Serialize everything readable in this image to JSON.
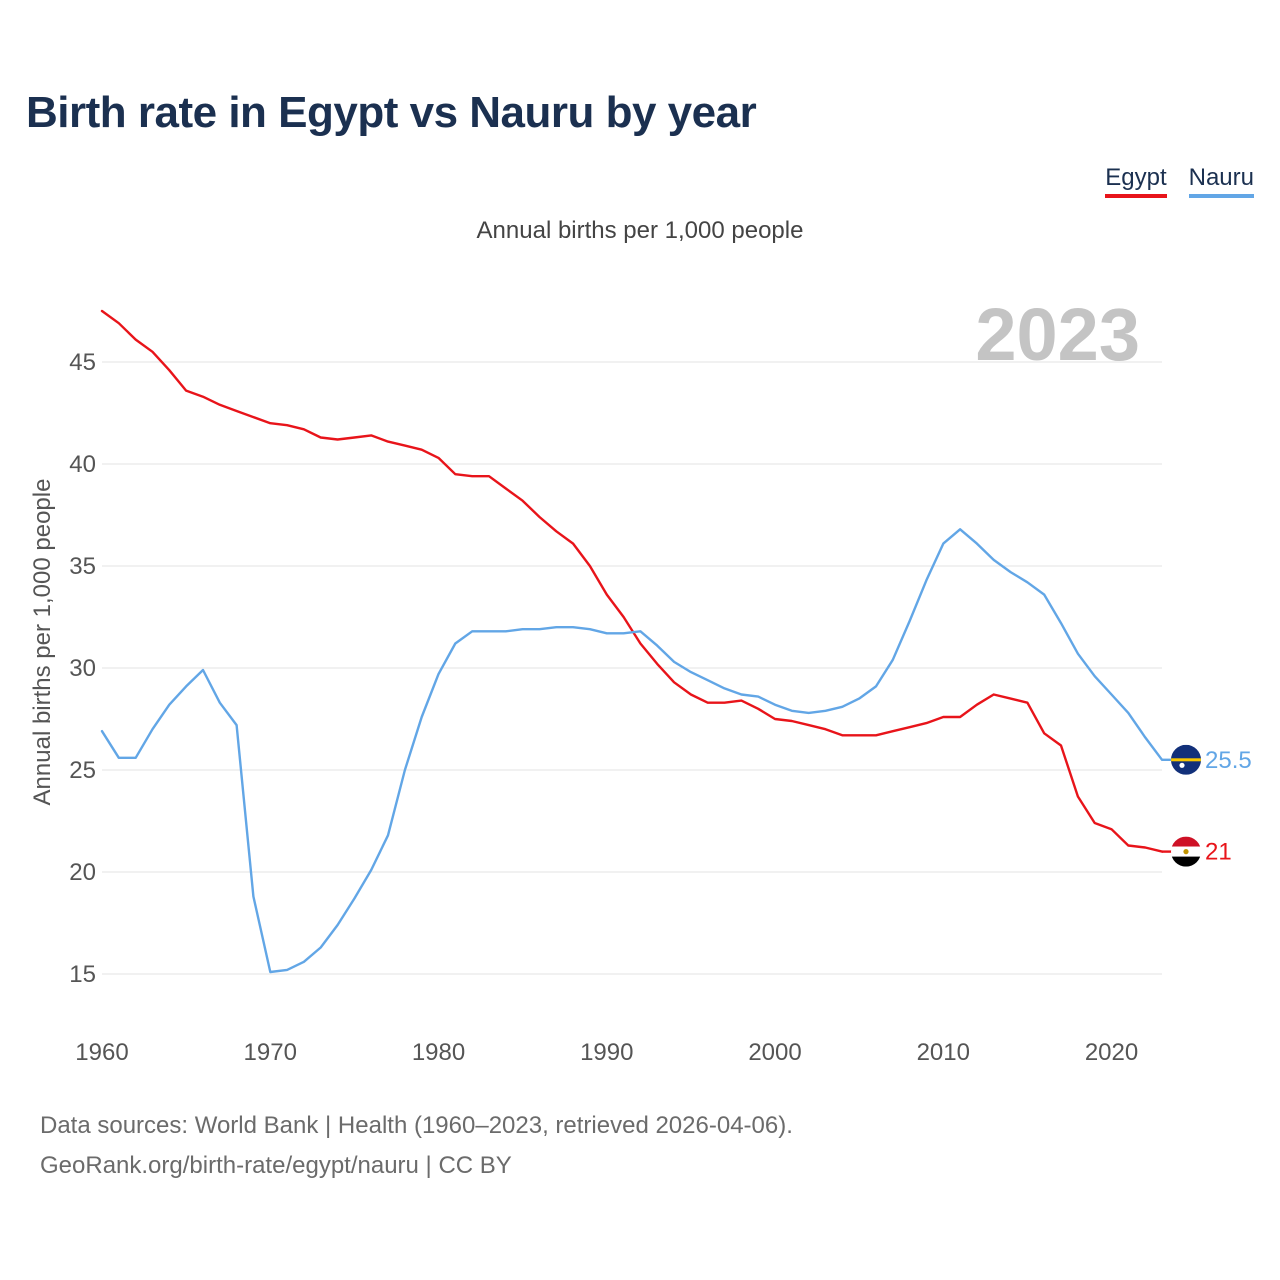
{
  "title": "Birth rate in Egypt vs Nauru by year",
  "subtitle": "Annual births per 1,000 people",
  "legend": [
    {
      "name": "Egypt",
      "color": "#e8141a"
    },
    {
      "name": "Nauru",
      "color": "#62a6e6"
    }
  ],
  "year_label": "2023",
  "source_line1": "Data sources: World Bank | Health (1960–2023, retrieved 2026-04-06).",
  "source_line2": "GeoRank.org/birth-rate/egypt/nauru | CC BY",
  "chart_data": {
    "type": "line",
    "title": "Birth rate in Egypt vs Nauru by year",
    "xlabel": "",
    "ylabel": "Annual births per 1,000 people",
    "xlim": [
      1960,
      2023
    ],
    "ylim": [
      13,
      48
    ],
    "x_ticks": [
      1960,
      1970,
      1980,
      1990,
      2000,
      2010,
      2020
    ],
    "y_ticks": [
      15,
      20,
      25,
      30,
      35,
      40,
      45
    ],
    "grid": true,
    "legend_position": "top-right",
    "x": [
      1960,
      1961,
      1962,
      1963,
      1964,
      1965,
      1966,
      1967,
      1968,
      1969,
      1970,
      1971,
      1972,
      1973,
      1974,
      1975,
      1976,
      1977,
      1978,
      1979,
      1980,
      1981,
      1982,
      1983,
      1984,
      1985,
      1986,
      1987,
      1988,
      1989,
      1990,
      1991,
      1992,
      1993,
      1994,
      1995,
      1996,
      1997,
      1998,
      1999,
      2000,
      2001,
      2002,
      2003,
      2004,
      2005,
      2006,
      2007,
      2008,
      2009,
      2010,
      2011,
      2012,
      2013,
      2014,
      2015,
      2016,
      2017,
      2018,
      2019,
      2020,
      2021,
      2022,
      2023
    ],
    "series": [
      {
        "name": "Egypt",
        "color": "#e8141a",
        "end_label": "21",
        "values": [
          47.5,
          46.9,
          46.1,
          45.5,
          44.6,
          43.6,
          43.3,
          42.9,
          42.6,
          42.3,
          42.0,
          41.9,
          41.7,
          41.3,
          41.2,
          41.3,
          41.4,
          41.1,
          40.9,
          40.7,
          40.3,
          39.5,
          39.4,
          39.4,
          38.8,
          38.2,
          37.4,
          36.7,
          36.1,
          35.0,
          33.6,
          32.5,
          31.2,
          30.2,
          29.3,
          28.7,
          28.3,
          28.3,
          28.4,
          28.0,
          27.5,
          27.4,
          27.2,
          27.0,
          26.7,
          26.7,
          26.7,
          26.9,
          27.1,
          27.3,
          27.6,
          27.6,
          28.2,
          28.7,
          28.5,
          28.3,
          26.8,
          26.2,
          23.7,
          22.4,
          22.1,
          21.3,
          21.2,
          21.0
        ]
      },
      {
        "name": "Nauru",
        "color": "#62a6e6",
        "end_label": "25.5",
        "values": [
          26.9,
          25.6,
          25.6,
          27.0,
          28.2,
          29.1,
          29.9,
          28.3,
          27.2,
          18.8,
          15.1,
          15.2,
          15.6,
          16.3,
          17.4,
          18.7,
          20.1,
          21.8,
          25.0,
          27.6,
          29.7,
          31.2,
          31.8,
          31.8,
          31.8,
          31.9,
          31.9,
          32.0,
          32.0,
          31.9,
          31.7,
          31.7,
          31.8,
          31.1,
          30.3,
          29.8,
          29.4,
          29.0,
          28.7,
          28.6,
          28.2,
          27.9,
          27.8,
          27.9,
          28.1,
          28.5,
          29.1,
          30.4,
          32.3,
          34.3,
          36.1,
          36.8,
          36.1,
          35.3,
          34.7,
          34.2,
          33.6,
          32.2,
          30.7,
          29.6,
          28.7,
          27.8,
          26.6,
          25.5
        ]
      }
    ]
  }
}
